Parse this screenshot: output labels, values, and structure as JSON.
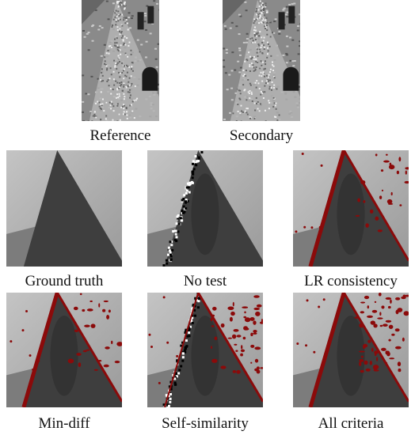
{
  "figure": {
    "panels": [
      {
        "caption": "Reference"
      },
      {
        "caption": "Secondary"
      },
      {
        "caption": "Ground truth"
      },
      {
        "caption": "No test"
      },
      {
        "caption": "LR consistency"
      },
      {
        "caption": "Min-diff"
      },
      {
        "caption": "Self-similarity"
      },
      {
        "caption": "All criteria"
      }
    ]
  }
}
